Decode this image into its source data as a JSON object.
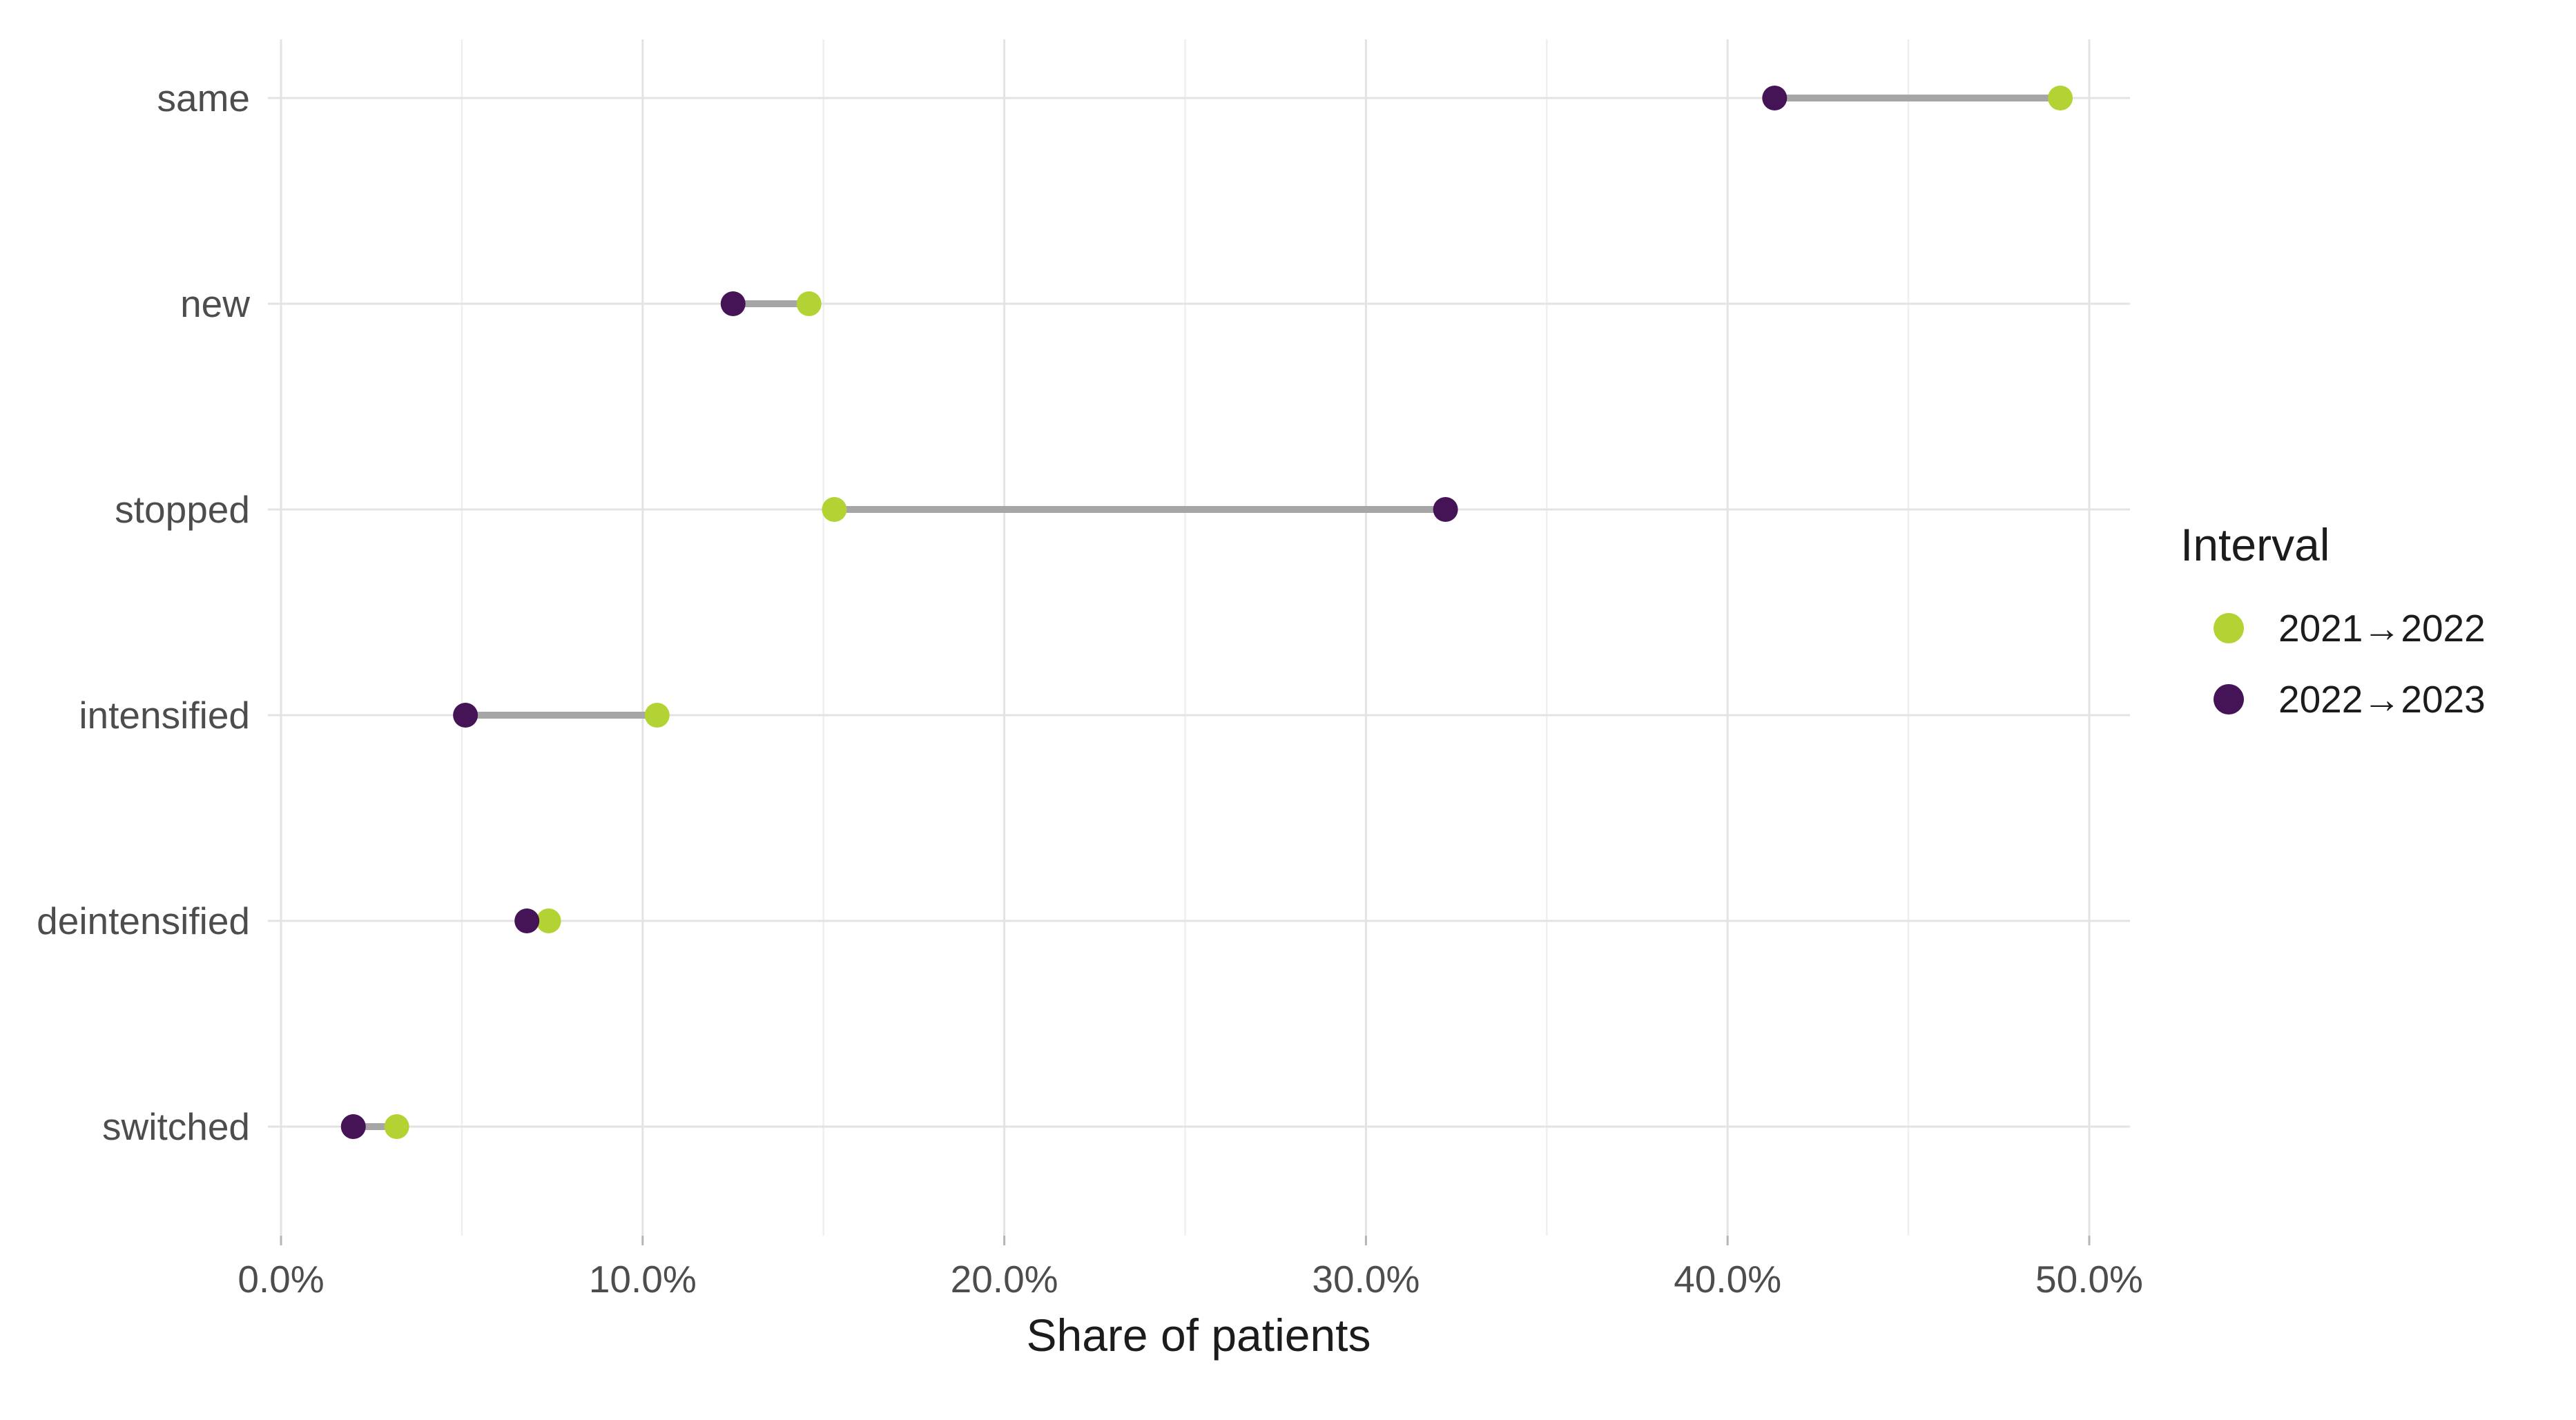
{
  "chart_data": {
    "type": "dumbbell",
    "title": "",
    "xlabel": "Share of patients",
    "ylabel": "",
    "categories": [
      "same",
      "new",
      "stopped",
      "intensified",
      "deintensified",
      "switched"
    ],
    "series": [
      {
        "name": "2021→2022",
        "color": "#b3d334",
        "values": [
          49.2,
          14.6,
          15.3,
          10.4,
          7.4,
          3.2
        ]
      },
      {
        "name": "2022→2023",
        "color": "#451457",
        "values": [
          41.3,
          12.5,
          32.2,
          5.1,
          6.8,
          2.0
        ]
      }
    ],
    "x_axis": {
      "tick_labels": [
        "0.0%",
        "10.0%",
        "20.0%",
        "30.0%",
        "40.0%",
        "50.0%"
      ],
      "tick_values": [
        0,
        10,
        20,
        30,
        40,
        50
      ],
      "minor_tick_values": [
        5,
        15,
        25,
        35,
        45
      ],
      "range": [
        -0.4,
        51.2
      ],
      "unit": "percent"
    },
    "grid": "on",
    "legend": {
      "title": "Interval",
      "position": "right"
    },
    "connector_color": "#a6a6a6",
    "background_color": "#ffffff"
  }
}
